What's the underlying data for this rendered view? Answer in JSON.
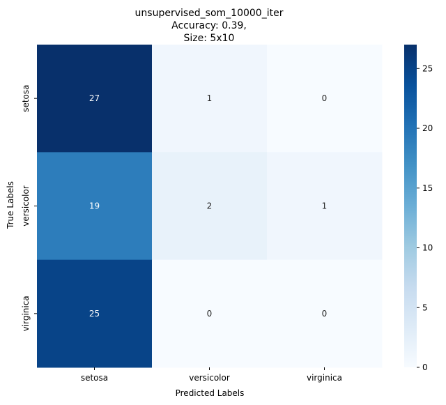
{
  "chart_data": {
    "type": "heatmap",
    "title_lines": [
      "unsupervised_som_10000_iter",
      "Accuracy: 0.39,",
      "Size: 5x10"
    ],
    "xlabel": "Predicted Labels",
    "ylabel": "True Labels",
    "x_categories": [
      "setosa",
      "versicolor",
      "virginica"
    ],
    "y_categories": [
      "setosa",
      "versicolor",
      "virginica"
    ],
    "values": [
      [
        27,
        1,
        0
      ],
      [
        19,
        2,
        1
      ],
      [
        25,
        0,
        0
      ]
    ],
    "colorbar": {
      "min": 0,
      "max": 27,
      "ticks": [
        0,
        5,
        10,
        15,
        20,
        25
      ]
    },
    "colormap": "Blues",
    "grid": false
  }
}
